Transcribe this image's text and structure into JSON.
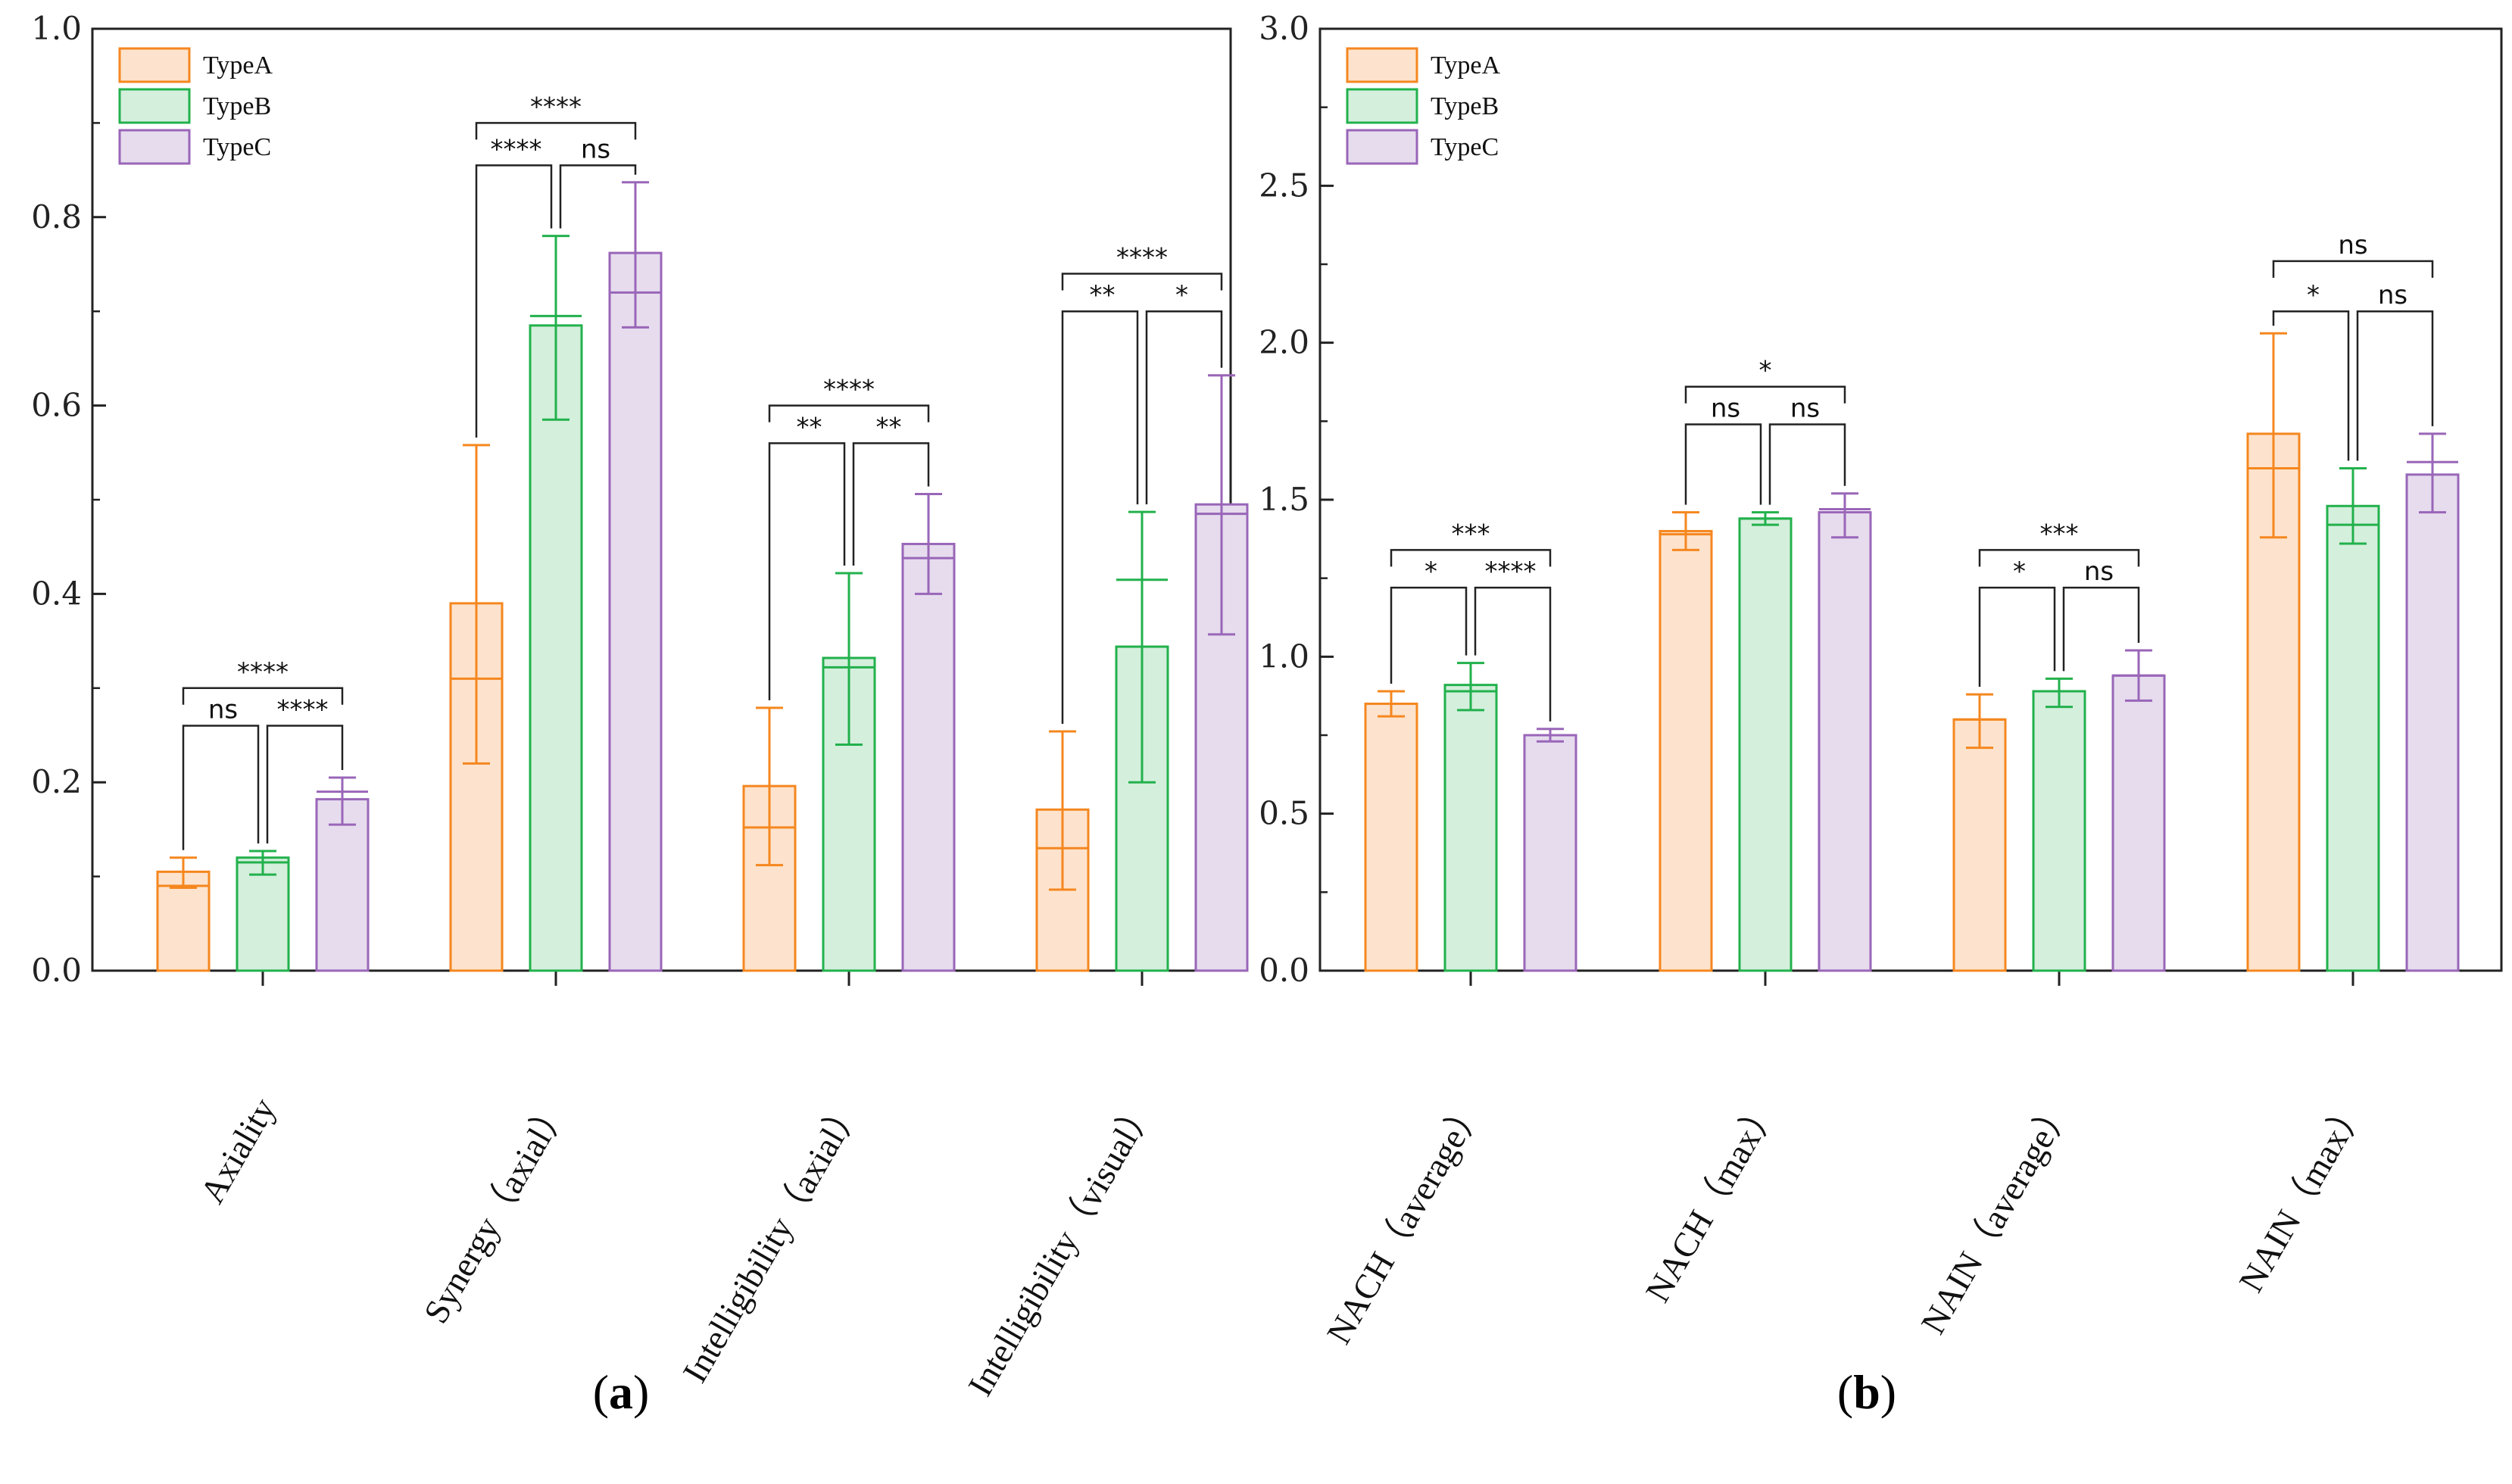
{
  "chart_data": [
    {
      "type": "bar",
      "panel_label": {
        "open": "(",
        "letter": "a",
        "close": ")"
      },
      "categories": [
        "Axiality",
        "Synergy（axial）",
        "Intelligibility（axial）",
        "Intelligibility（visual）"
      ],
      "series": [
        {
          "name": "TypeA",
          "values": [
            0.105,
            0.39,
            0.196,
            0.171
          ],
          "medians": [
            0.09,
            0.31,
            0.152,
            0.13
          ],
          "err_low": [
            0.088,
            0.22,
            0.112,
            0.086
          ],
          "err_high": [
            0.12,
            0.558,
            0.279,
            0.254
          ]
        },
        {
          "name": "TypeB",
          "values": [
            0.12,
            0.685,
            0.332,
            0.344
          ],
          "medians": [
            0.115,
            0.695,
            0.322,
            0.415
          ],
          "err_low": [
            0.102,
            0.585,
            0.24,
            0.2
          ],
          "err_high": [
            0.127,
            0.78,
            0.422,
            0.487
          ]
        },
        {
          "name": "TypeC",
          "values": [
            0.182,
            0.762,
            0.453,
            0.495
          ],
          "medians": [
            0.19,
            0.72,
            0.438,
            0.485
          ],
          "err_low": [
            0.155,
            0.683,
            0.4,
            0.357
          ],
          "err_high": [
            0.205,
            0.837,
            0.506,
            0.632
          ]
        }
      ],
      "ylim": [
        0,
        1.0
      ],
      "yticks": [
        "0.0",
        "0.2",
        "0.4",
        "0.6",
        "0.8",
        "1.0"
      ],
      "significance": [
        {
          "category": 0,
          "labels": {
            "ab": "ns",
            "bc": "****",
            "ac": "****"
          },
          "levels": {
            "ab": 0.26,
            "ac": 0.3
          }
        },
        {
          "category": 1,
          "labels": {
            "ab": "****",
            "bc": "ns",
            "ac": "****"
          },
          "levels": {
            "ab": 0.855,
            "ac": 0.9
          }
        },
        {
          "category": 2,
          "labels": {
            "ab": "**",
            "bc": "**",
            "ac": "****"
          },
          "levels": {
            "ab": 0.56,
            "ac": 0.6
          }
        },
        {
          "category": 3,
          "labels": {
            "ab": "**",
            "bc": "*",
            "ac": "****"
          },
          "levels": {
            "ab": 0.7,
            "ac": 0.74
          }
        }
      ]
    },
    {
      "type": "bar",
      "panel_label": {
        "open": "(",
        "letter": "b",
        "close": ")"
      },
      "categories": [
        "NACH（average）",
        "NACH（max）",
        "NAIN（average）",
        "NAIN（max）"
      ],
      "series": [
        {
          "name": "TypeA",
          "values": [
            0.85,
            1.4,
            0.8,
            1.71
          ],
          "medians": [
            0.85,
            1.39,
            0.8,
            1.6
          ],
          "err_low": [
            0.81,
            1.34,
            0.71,
            1.38
          ],
          "err_high": [
            0.89,
            1.46,
            0.88,
            2.03
          ]
        },
        {
          "name": "TypeB",
          "values": [
            0.91,
            1.44,
            0.89,
            1.48
          ],
          "medians": [
            0.89,
            1.44,
            0.89,
            1.42
          ],
          "err_low": [
            0.83,
            1.42,
            0.84,
            1.36
          ],
          "err_high": [
            0.98,
            1.46,
            0.93,
            1.6
          ]
        },
        {
          "name": "TypeC",
          "values": [
            0.75,
            1.46,
            0.94,
            1.58
          ],
          "medians": [
            0.75,
            1.47,
            0.94,
            1.62
          ],
          "err_low": [
            0.73,
            1.38,
            0.86,
            1.46
          ],
          "err_high": [
            0.77,
            1.52,
            1.02,
            1.71
          ]
        }
      ],
      "ylim": [
        0,
        3.0
      ],
      "yticks": [
        "0.0",
        "0.5",
        "1.0",
        "1.5",
        "2.0",
        "2.5",
        "3.0"
      ],
      "significance": [
        {
          "category": 0,
          "labels": {
            "ab": "*",
            "bc": "****",
            "ac": "***"
          },
          "levels": {
            "ab": 1.22,
            "ac": 1.34
          }
        },
        {
          "category": 1,
          "labels": {
            "ab": "ns",
            "bc": "ns",
            "ac": "*"
          },
          "levels": {
            "ab": 1.74,
            "ac": 1.86
          }
        },
        {
          "category": 2,
          "labels": {
            "ab": "*",
            "bc": "ns",
            "ac": "***"
          },
          "levels": {
            "ab": 1.22,
            "ac": 1.34
          }
        },
        {
          "category": 3,
          "labels": {
            "ab": "*",
            "bc": "ns",
            "ac": "ns"
          },
          "levels": {
            "ab": 2.1,
            "ac": 2.26
          }
        }
      ]
    }
  ],
  "colors": {
    "TypeA": {
      "fill": "#fde3cd",
      "stroke": "#f5871f"
    },
    "TypeB": {
      "fill": "#d4efdc",
      "stroke": "#22b14c"
    },
    "TypeC": {
      "fill": "#e6dcee",
      "stroke": "#9966b8"
    }
  }
}
